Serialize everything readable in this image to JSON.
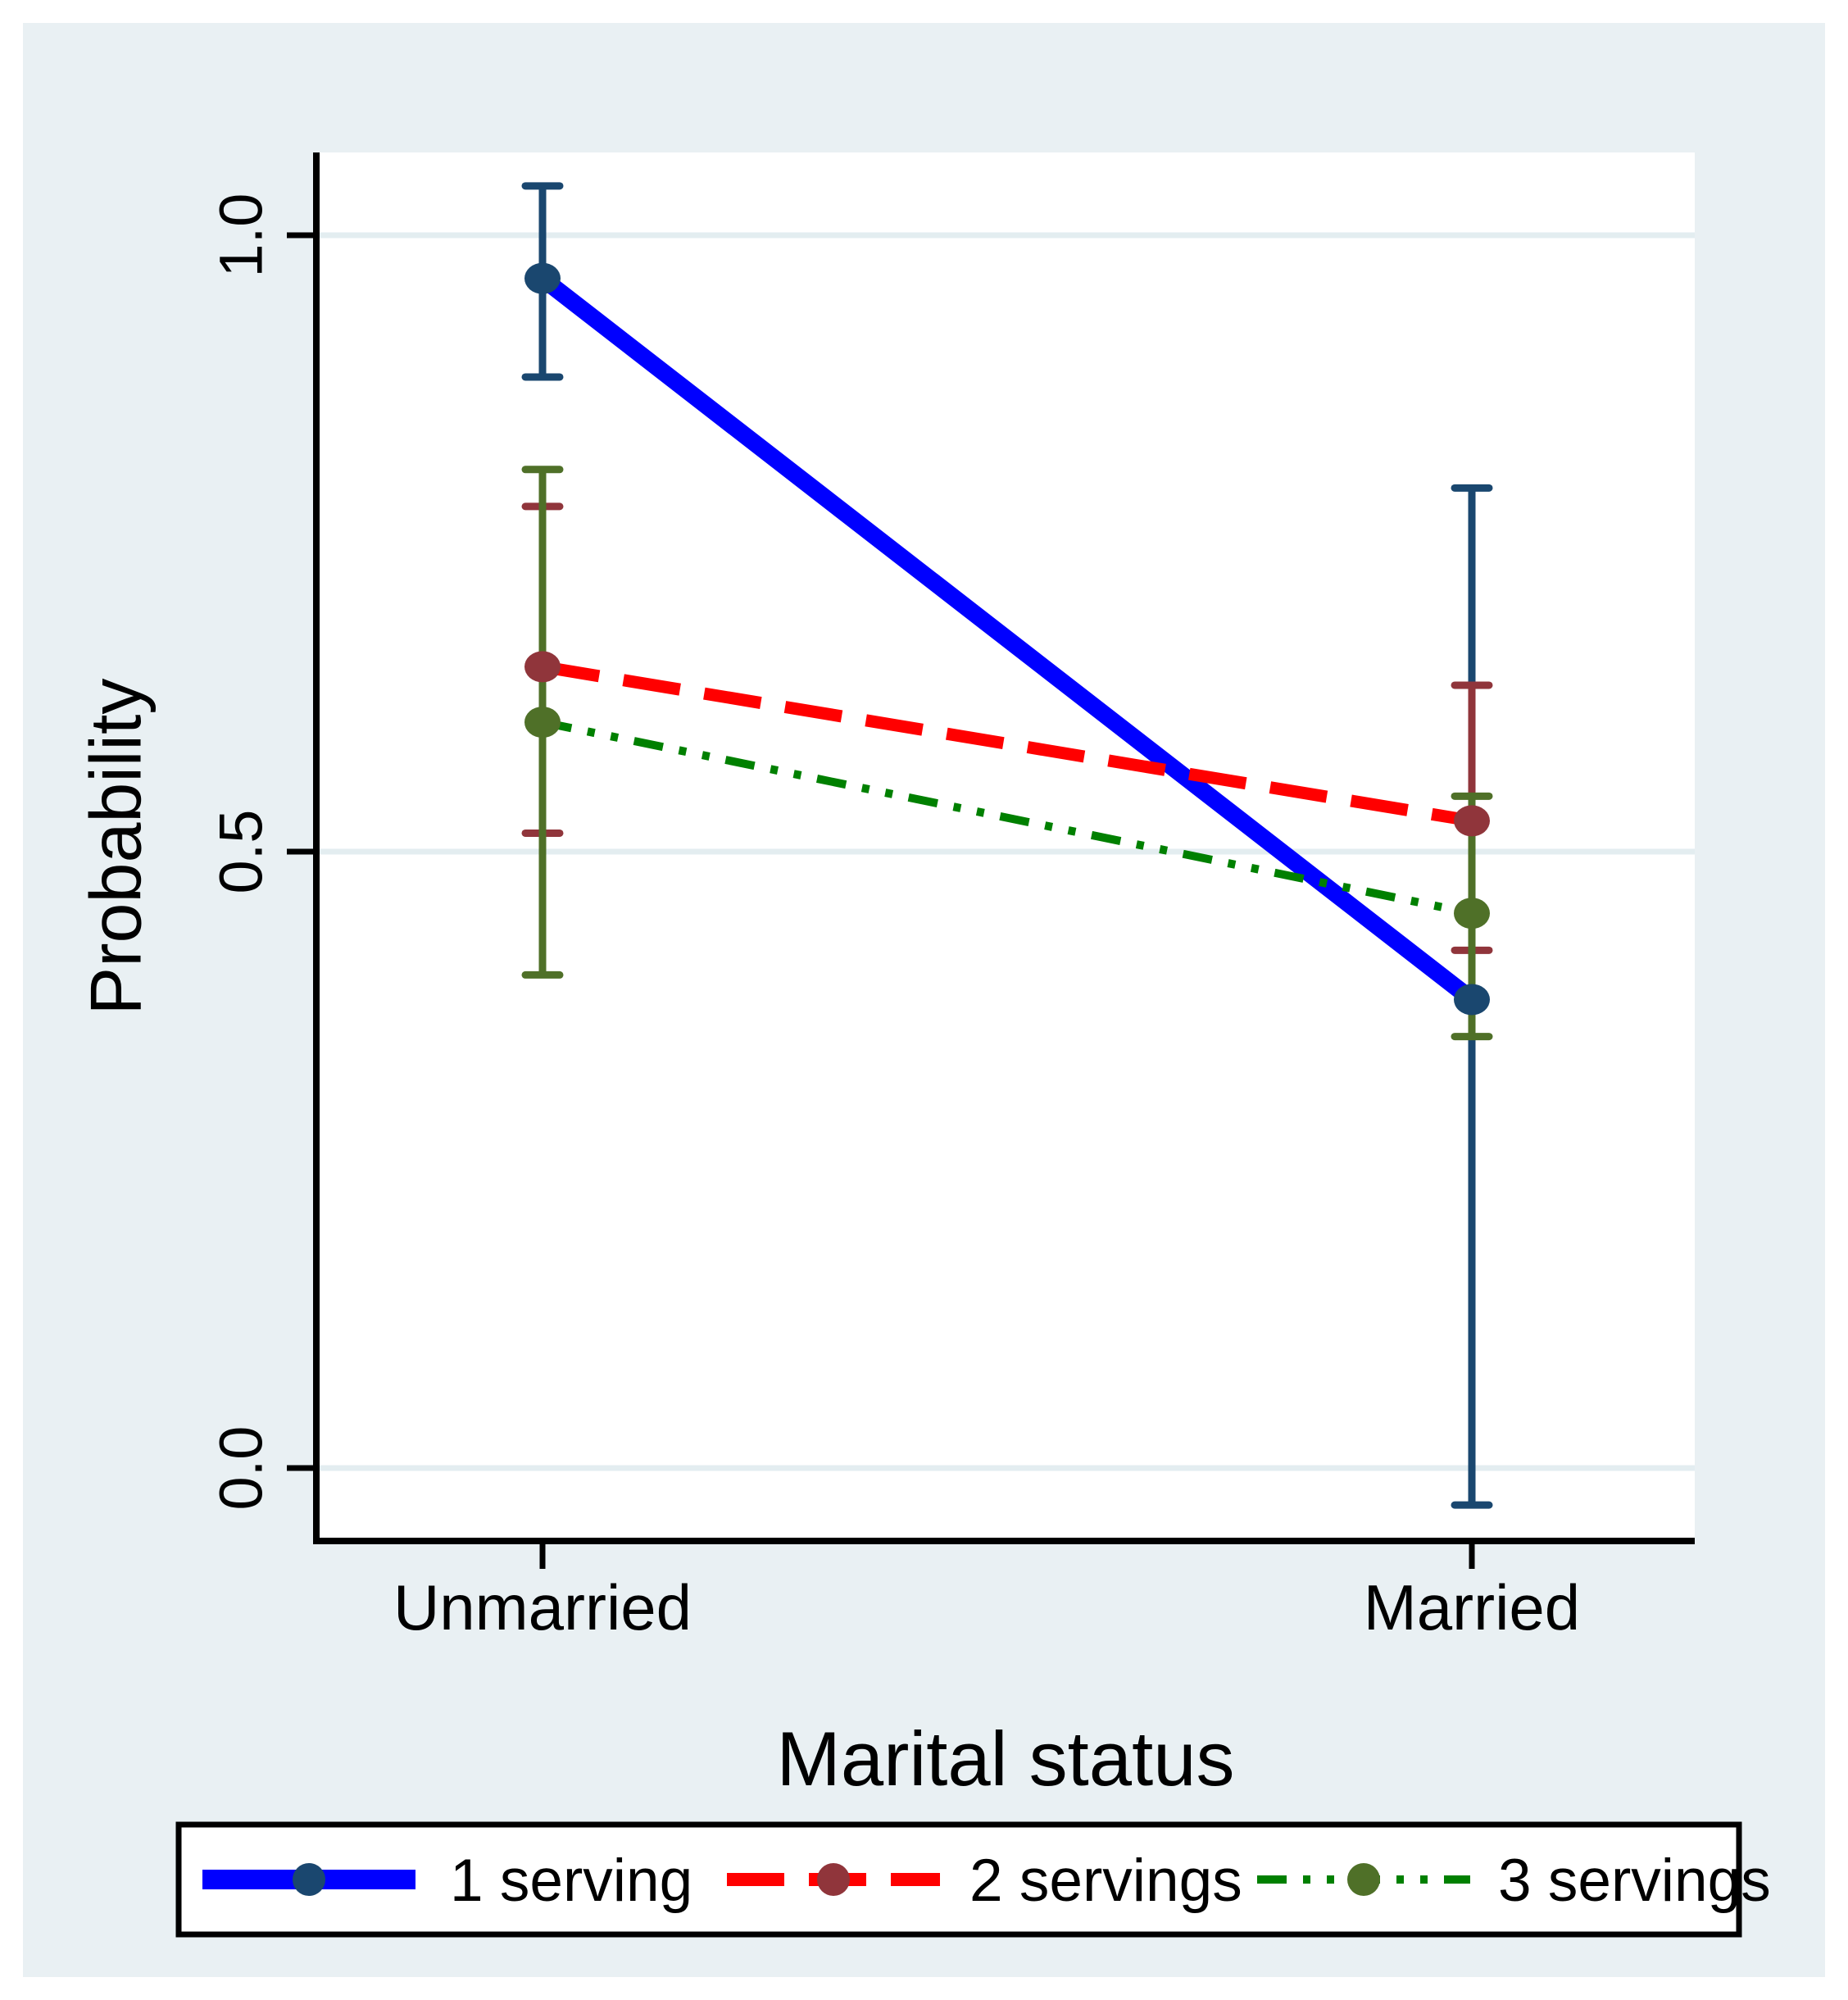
{
  "figure": {
    "outer_background": "#ffffff",
    "region_background": "#e9f0f3",
    "plot_background": "#ffffff",
    "axis_color": "#000000",
    "gridline_color": "#e3edf0"
  },
  "chart_data": {
    "type": "line",
    "title": "",
    "xlabel": "Marital status",
    "ylabel": "Probability",
    "categories": [
      "Unmarried",
      "Married"
    ],
    "y_ticks": [
      0.0,
      0.5,
      1.0
    ],
    "y_tick_labels": [
      "0.0",
      "0.5",
      "1.0"
    ],
    "ylim": [
      -0.06,
      1.07
    ],
    "grid": true,
    "error_bars": true,
    "legend_position": "bottom",
    "series": [
      {
        "name": "1 serving",
        "values": [
          0.965,
          0.38
        ],
        "ci_low": [
          0.885,
          -0.03
        ],
        "ci_high": [
          1.04,
          0.795
        ],
        "marker_color": "#1a476f",
        "line_color": "#0000ff",
        "line_style": "solid",
        "line_width": 21
      },
      {
        "name": "2 servings",
        "values": [
          0.65,
          0.525
        ],
        "ci_low": [
          0.515,
          0.42
        ],
        "ci_high": [
          0.78,
          0.635
        ],
        "marker_color": "#90353b",
        "line_color": "#ff0000",
        "line_style": "dash",
        "line_width": 15
      },
      {
        "name": "3 servings",
        "values": [
          0.605,
          0.45
        ],
        "ci_low": [
          0.4,
          0.35
        ],
        "ci_high": [
          0.81,
          0.545
        ],
        "marker_color": "#4f7028",
        "line_color": "#008000",
        "line_style": "dash-dot-dot",
        "line_width": 10
      }
    ]
  }
}
